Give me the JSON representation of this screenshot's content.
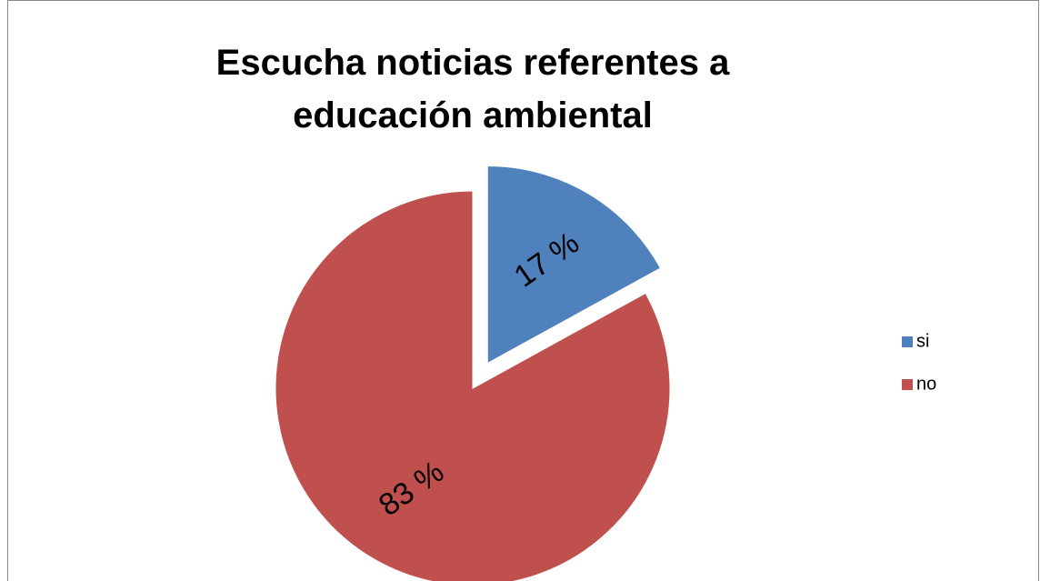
{
  "chart_data": {
    "type": "pie",
    "title": "Escucha noticias referentes a educación ambiental",
    "categories": [
      "si",
      "no"
    ],
    "values": [
      17,
      83
    ],
    "value_labels": [
      "17 %",
      "83 %"
    ],
    "colors": [
      "#4f81bd",
      "#c0504d"
    ],
    "exploded": [
      true,
      false
    ],
    "legend": "right"
  }
}
